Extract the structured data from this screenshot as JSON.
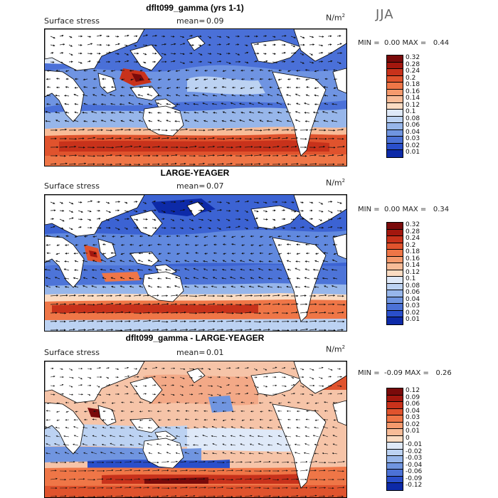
{
  "season": "JJA",
  "panels": [
    {
      "title": "dflt099_gamma (yrs 1-1)",
      "variable": "Surface stress",
      "mean_label": "mean=",
      "mean_value": "0.09",
      "units_base": "N/m",
      "units_exp": "2",
      "min_label": "MIN =",
      "min_value": "0.00",
      "max_label": "MAX =",
      "max_value": "0.44",
      "colorbar_labels": [
        "0.32",
        "0.28",
        "0.24",
        "0.2",
        "0.18",
        "0.16",
        "0.14",
        "0.12",
        "0.1",
        "0.08",
        "0.06",
        "0.04",
        "0.03",
        "0.02",
        "0.01"
      ],
      "colorbar_colors": [
        "#7a0a0a",
        "#a3170e",
        "#c8321b",
        "#e0532d",
        "#ef7647",
        "#f59a6d",
        "#f8bc98",
        "#fbdcc3",
        "#dfe9f8",
        "#bcd2f2",
        "#97b6ea",
        "#7095e0",
        "#4c72d6",
        "#2a4fcb",
        "#0d2aa8"
      ]
    },
    {
      "title": "LARGE-YEAGER",
      "variable": "Surface stress",
      "mean_label": "mean=",
      "mean_value": "0.07",
      "units_base": "N/m",
      "units_exp": "2",
      "min_label": "MIN =",
      "min_value": "0.00",
      "max_label": "MAX =",
      "max_value": "0.34",
      "colorbar_labels": [
        "0.32",
        "0.28",
        "0.24",
        "0.2",
        "0.18",
        "0.16",
        "0.14",
        "0.12",
        "0.1",
        "0.08",
        "0.06",
        "0.04",
        "0.03",
        "0.02",
        "0.01"
      ],
      "colorbar_colors": [
        "#7a0a0a",
        "#a3170e",
        "#c8321b",
        "#e0532d",
        "#ef7647",
        "#f59a6d",
        "#f8bc98",
        "#fbdcc3",
        "#dfe9f8",
        "#bcd2f2",
        "#97b6ea",
        "#7095e0",
        "#4c72d6",
        "#2a4fcb",
        "#0d2aa8"
      ]
    },
    {
      "title": "dflt099_gamma - LARGE-YEAGER",
      "variable": "Surface stress",
      "mean_label": "mean=",
      "mean_value": "0.01",
      "units_base": "N/m",
      "units_exp": "2",
      "min_label": "MIN =",
      "min_value": "-0.09",
      "max_label": "MAX =",
      "max_value": "0.26",
      "colorbar_labels": [
        "0.12",
        "0.09",
        "0.06",
        "0.04",
        "0.03",
        "0.02",
        "0.01",
        "0",
        "-0.01",
        "-0.02",
        "-0.03",
        "-0.04",
        "-0.06",
        "-0.09",
        "-0.12"
      ],
      "colorbar_colors": [
        "#7a0a0a",
        "#a3170e",
        "#c8321b",
        "#e0532d",
        "#ef7647",
        "#f59a6d",
        "#f8bc98",
        "#fbdcc3",
        "#dfe9f8",
        "#bcd2f2",
        "#97b6ea",
        "#7095e0",
        "#4c72d6",
        "#2a4fcb",
        "#0d2aa8"
      ]
    }
  ]
}
